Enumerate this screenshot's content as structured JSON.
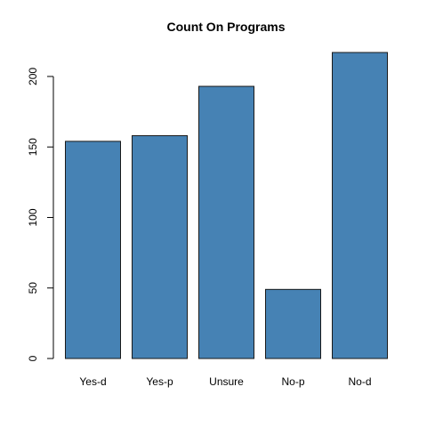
{
  "chart_data": {
    "type": "bar",
    "title": "Count On Programs",
    "xlabel": "",
    "ylabel": "",
    "categories": [
      "Yes-d",
      "Yes-p",
      "Unsure",
      "No-p",
      "No-d"
    ],
    "values": [
      154,
      158,
      193,
      49,
      217
    ],
    "ylim": [
      0,
      217
    ],
    "y_ticks": [
      0,
      50,
      100,
      150,
      200
    ],
    "grid": false,
    "legend": "none",
    "colors": {
      "bar_fill": "#4682b4",
      "bar_border": "#1a1a1a",
      "axis": "#000000",
      "text": "#000000"
    }
  }
}
